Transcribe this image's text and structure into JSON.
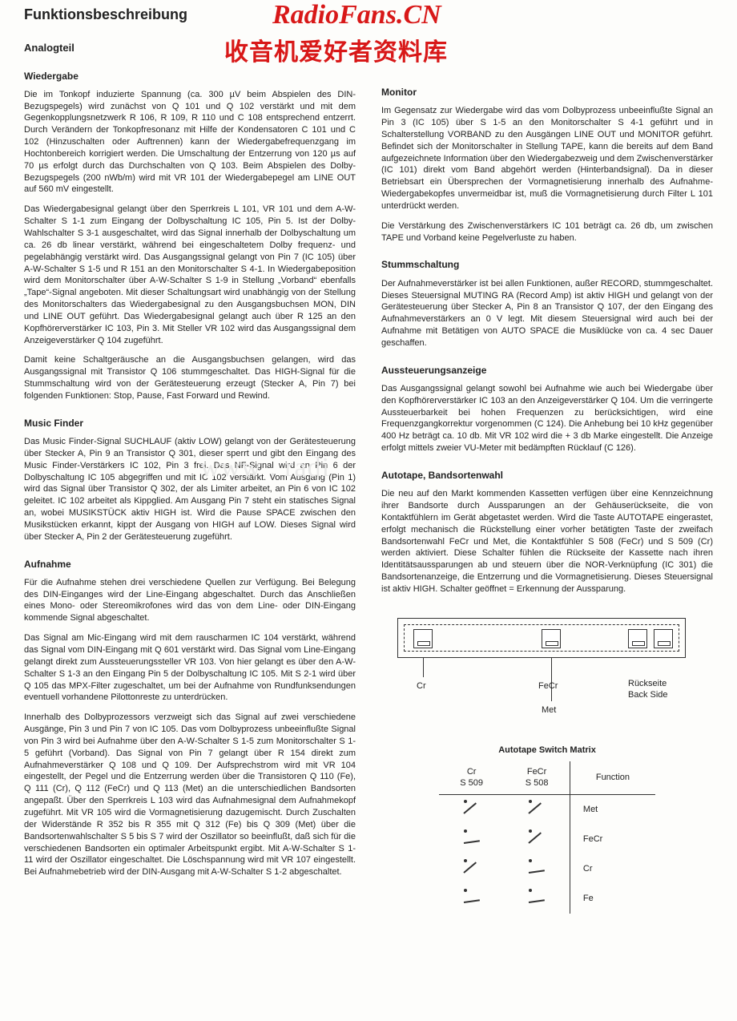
{
  "watermark": {
    "line1": "RadioFans.CN",
    "line2": "收音机爱好者资料库",
    "faint": "www . radi"
  },
  "title": "Funktionsbeschreibung",
  "left": {
    "h2": "Analogteil",
    "sec1": {
      "h": "Wiedergabe",
      "p1": "Die im Tonkopf induzierte Spannung (ca. 300 µV beim Abspielen des DIN-Bezugspegels) wird zunächst von Q 101 und Q 102 verstärkt und mit dem Gegenkopplungsnetzwerk R 106, R 109, R 110 und C 108 entsprechend entzerrt. Durch Verändern der Tonkopfresonanz mit Hilfe der Kondensatoren C 101 und C 102 (Hinzuschalten oder Auftrennen) kann der Wiedergabefrequenzgang im Hochtonbereich korrigiert werden. Die Umschaltung der Entzerrung von 120 µs auf 70 µs erfolgt durch das Durchschalten von Q 103. Beim Abspielen des Dolby-Bezugspegels (200 nWb/m) wird mit VR 101 der Wiedergabepegel am LINE OUT auf 560 mV eingestellt.",
      "p2": "Das Wiedergabesignal gelangt über den Sperrkreis L 101, VR 101 und dem A-W-Schalter S 1-1 zum Eingang der Dolbyschaltung IC 105, Pin 5. Ist der Dolby-Wahlschalter S 3-1 ausgeschaltet, wird das Signal innerhalb der Dolbyschaltung um ca. 26 db linear verstärkt, während bei eingeschaltetem Dolby frequenz- und pegelabhängig verstärkt wird. Das Ausgangssignal gelangt von Pin 7 (IC 105) über A-W-Schalter S 1-5 und R 151 an den Monitorschalter S 4-1. In Wiedergabeposition wird dem Monitorschalter über A-W-Schalter S 1-9 in Stellung „Vorband“ ebenfalls „Tape“-Signal angeboten. Mit dieser Schaltungsart wird unabhängig von der Stellung des Monitorschalters das Wiedergabesignal zu den Ausgangsbuchsen MON, DIN und LINE OUT geführt. Das Wiedergabesignal gelangt auch über R 125 an den Kopfhörerverstärker IC 103, Pin 3. Mit Steller VR 102 wird das Ausgangssignal dem Anzeigeverstärker Q 104 zugeführt.",
      "p3": "Damit keine Schaltgeräusche an die Ausgangsbuchsen gelangen, wird das Ausgangssignal mit Transistor Q 106 stummgeschaltet. Das HIGH-Signal für die Stummschaltung wird von der Gerätesteuerung erzeugt (Stecker A, Pin 7) bei folgenden Funktionen: Stop, Pause, Fast Forward und Rewind."
    },
    "sec2": {
      "h": "Music Finder",
      "p1": "Das Music Finder-Signal SUCHLAUF (aktiv LOW) gelangt von der Gerätesteuerung über Stecker A, Pin 9 an Transistor Q 301, dieser sperrt und gibt den Eingang des Music Finder-Verstärkers IC 102, Pin 3 frei. Das NF-Signal wird an Pin 6 der Dolbyschaltung IC 105 abgegriffen und mit IC 102 verstärkt. Vom Ausgang (Pin 1) wird das Signal über Transistor Q 302, der als Limiter arbeitet, an Pin 6 von IC 102 geleitet. IC 102 arbeitet als Kippglied. Am Ausgang Pin 7 steht ein statisches Signal an, wobei MUSIKSTÜCK aktiv HIGH ist. Wird die Pause SPACE zwischen den Musikstücken erkannt, kippt der Ausgang von HIGH auf LOW. Dieses Signal wird über Stecker A, Pin 2 der Gerätesteuerung zugeführt."
    },
    "sec3": {
      "h": "Aufnahme",
      "p1": "Für die Aufnahme stehen drei verschiedene Quellen zur Verfügung. Bei Belegung des DIN-Einganges wird der Line-Eingang abgeschaltet. Durch das Anschließen eines Mono- oder Stereomikrofones wird das von dem Line- oder DIN-Eingang kommende Signal abgeschaltet.",
      "p2": "Das Signal am Mic-Eingang wird mit dem rauscharmen IC 104 verstärkt, während das Signal vom DIN-Eingang mit Q 601 verstärkt wird. Das Signal vom Line-Eingang gelangt direkt zum Aussteuerungssteller VR 103. Von hier gelangt es über den A-W-Schalter S 1-3 an den Eingang Pin 5 der Dolbyschaltung IC 105. Mit S 2-1 wird über Q 105 das MPX-Filter zugeschaltet, um bei der Aufnahme von Rundfunksendungen eventuell vorhandene Pilottonreste zu unterdrücken.",
      "p3": "Innerhalb des Dolbyprozessors verzweigt sich das Signal auf zwei verschiedene Ausgänge, Pin 3 und Pin 7 von IC 105. Das vom Dolbyprozess unbeeinflußte Signal von Pin 3 wird bei Aufnahme über den A-W-Schalter S 1-5 zum Monitorschalter S 1-5 geführt (Vorband). Das Signal von Pin 7 gelangt über R 154 direkt zum Aufnahmeverstärker Q 108 und Q 109. Der Aufsprechstrom wird mit VR 104 eingestellt, der Pegel und die Entzerrung werden über die Transistoren Q 110 (Fe), Q 111 (Cr), Q 112 (FeCr) und Q 113 (Met) an die unterschiedlichen Bandsorten angepaßt. Über den Sperrkreis L 103 wird das Aufnahmesignal dem Aufnahmekopf zugeführt. Mit VR 105 wird die Vormagnetisierung dazugemischt. Durch Zuschalten der Widerstände R 352 bis R 355 mit Q 312 (Fe) bis Q 309 (Met) über die Bandsortenwahlschalter S 5 bis S 7 wird der Oszillator so beeinflußt, daß sich für die verschiedenen Bandsorten ein optimaler Arbeitspunkt ergibt. Mit A-W-Schalter S 1-11 wird der Oszillator eingeschaltet. Die Löschspannung wird mit VR 107 eingestellt. Bei Aufnahmebetrieb wird der DIN-Ausgang mit A-W-Schalter S 1-2 abgeschaltet."
    }
  },
  "right": {
    "sec1": {
      "h": "Monitor",
      "p1": "Im Gegensatz zur Wiedergabe wird das vom Dolbyprozess unbeeinflußte Signal an Pin 3 (IC 105) über S 1-5 an den Monitorschalter S 4-1 geführt und in Schalterstellung VORBAND zu den Ausgängen LINE OUT und MONITOR geführt. Befindet sich der Monitorschalter in Stellung TAPE, kann die bereits auf dem Band aufgezeichnete Information über den Wiedergabezweig und dem Zwischenverstärker (IC 101) direkt vom Band abgehört werden (Hinterbandsignal). Da in dieser Betriebsart ein Übersprechen der Vormagnetisierung innerhalb des Aufnahme-Wiedergabekopfes unvermeidbar ist, muß die Vormagnetisierung durch Filter L 101 unterdrückt werden.",
      "p2": "Die Verstärkung des Zwischenverstärkers IC 101 beträgt ca. 26 db, um zwischen TAPE und Vorband keine Pegelverluste zu haben."
    },
    "sec2": {
      "h": "Stummschaltung",
      "p1": "Der Aufnahmeverstärker ist bei allen Funktionen, außer RECORD, stummgeschaltet. Dieses Steuersignal MUTING RA (Record Amp) ist aktiv HIGH und gelangt von der Gerätesteuerung über Stecker A, Pin 8 an Transistor Q 107, der den Eingang des Aufnahmeverstärkers an 0 V legt. Mit diesem Steuersignal wird auch bei der Aufnahme mit Betätigen von AUTO SPACE die Musiklücke von ca. 4 sec Dauer geschaffen."
    },
    "sec3": {
      "h": "Aussteuerungsanzeige",
      "p1": "Das Ausgangssignal gelangt sowohl bei Aufnahme wie auch bei Wiedergabe über den Kopfhörerverstärker IC 103 an den Anzeigeverstärker Q 104. Um die verringerte Aussteuerbarkeit bei hohen Frequenzen zu berücksichtigen, wird eine Frequenzgangkorrektur vorgenommen (C 124). Die Anhebung bei 10 kHz gegenüber 400 Hz beträgt ca. 10 db. Mit VR 102 wird die + 3 db Marke eingestellt. Die Anzeige erfolgt mittels zweier VU-Meter mit bedämpften Rücklauf (C 126)."
    },
    "sec4": {
      "h": "Autotape, Bandsortenwahl",
      "p1": "Die neu auf den Markt kommenden Kassetten verfügen über eine Kennzeichnung ihrer Bandsorte durch Aussparungen an der Gehäuserückseite, die von Kontaktfühlern im Gerät abgetastet werden. Wird die Taste AUTOTAPE eingerastet, erfolgt mechanisch die Rückstellung einer vorher betätigten Taste der zweifach Bandsortenwahl FeCr und Met, die Kontaktfühler S 508 (FeCr) und S 509 (Cr) werden aktiviert. Diese Schalter fühlen die Rückseite der Kassette nach ihren Identitätsaussparungen ab und steuern über die NOR-Verknüpfung (IC 301) die Bandsortenanzeige, die Entzerrung und die Vormagnetisierung. Dieses Steuersignal ist aktiv HIGH. Schalter geöffnet = Erkennung der Aussparung."
    },
    "diagram": {
      "cr": "Cr",
      "fecr": "FeCr",
      "met": "Met",
      "ruck": "Rückseite\nBack Side"
    },
    "matrix": {
      "title": "Autotape Switch Matrix",
      "head": {
        "c1": "Cr\nS 509",
        "c2": "FeCr\nS 508",
        "c3": "Function"
      },
      "rows": [
        {
          "s1": "open",
          "s2": "open",
          "fn": "Met"
        },
        {
          "s1": "closed",
          "s2": "open",
          "fn": "FeCr"
        },
        {
          "s1": "open",
          "s2": "closed",
          "fn": "Cr"
        },
        {
          "s1": "closed",
          "s2": "closed",
          "fn": "Fe"
        }
      ]
    }
  }
}
